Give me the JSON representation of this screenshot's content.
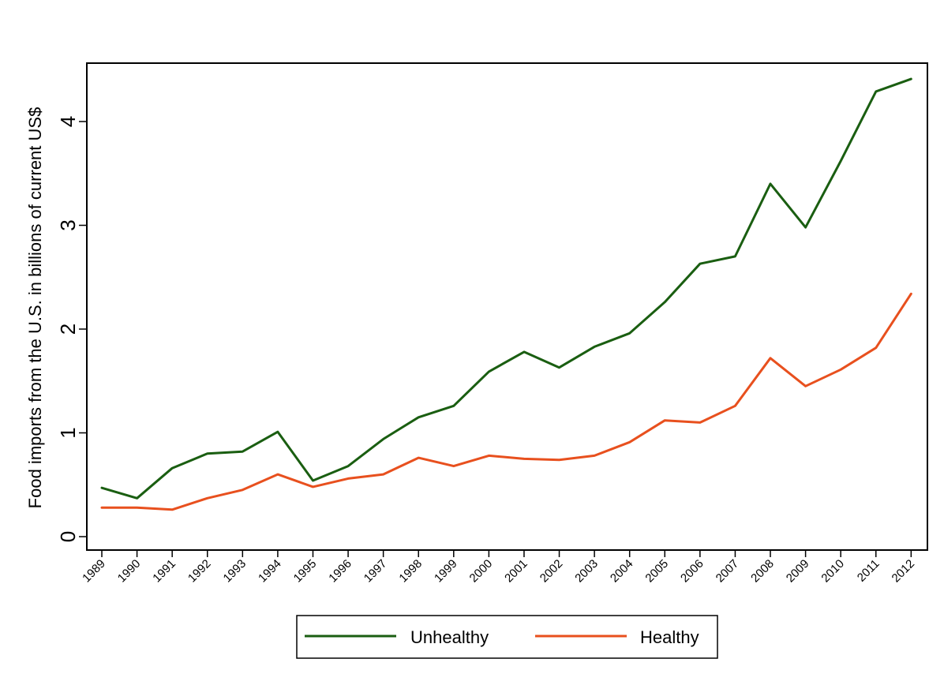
{
  "chart_data": {
    "type": "line",
    "title": "",
    "xlabel": "",
    "ylabel": "Food imports from the U.S. in billions of current US$",
    "x": [
      "1989",
      "1990",
      "1991",
      "1992",
      "1993",
      "1994",
      "1995",
      "1996",
      "1997",
      "1998",
      "1999",
      "2000",
      "2001",
      "2002",
      "2003",
      "2004",
      "2005",
      "2006",
      "2007",
      "2008",
      "2009",
      "2010",
      "2011",
      "2012"
    ],
    "yticks": [
      0,
      1,
      2,
      3,
      4
    ],
    "ylim": [
      -0.13,
      4.55
    ],
    "grid": false,
    "legend_position": "bottom",
    "series": [
      {
        "name": "Unhealthy",
        "color": "#1a5e11",
        "values": [
          0.47,
          0.37,
          0.66,
          0.8,
          0.82,
          1.01,
          0.54,
          0.68,
          0.94,
          1.15,
          1.26,
          1.59,
          1.78,
          1.63,
          1.83,
          1.96,
          2.26,
          2.63,
          2.7,
          3.4,
          2.98,
          3.62,
          4.29,
          4.41
        ]
      },
      {
        "name": "Healthy",
        "color": "#e8501e",
        "values": [
          0.28,
          0.28,
          0.26,
          0.37,
          0.45,
          0.6,
          0.48,
          0.56,
          0.6,
          0.76,
          0.68,
          0.78,
          0.75,
          0.74,
          0.78,
          0.91,
          1.12,
          1.1,
          1.26,
          1.72,
          1.45,
          1.61,
          1.82,
          2.34
        ]
      }
    ]
  }
}
